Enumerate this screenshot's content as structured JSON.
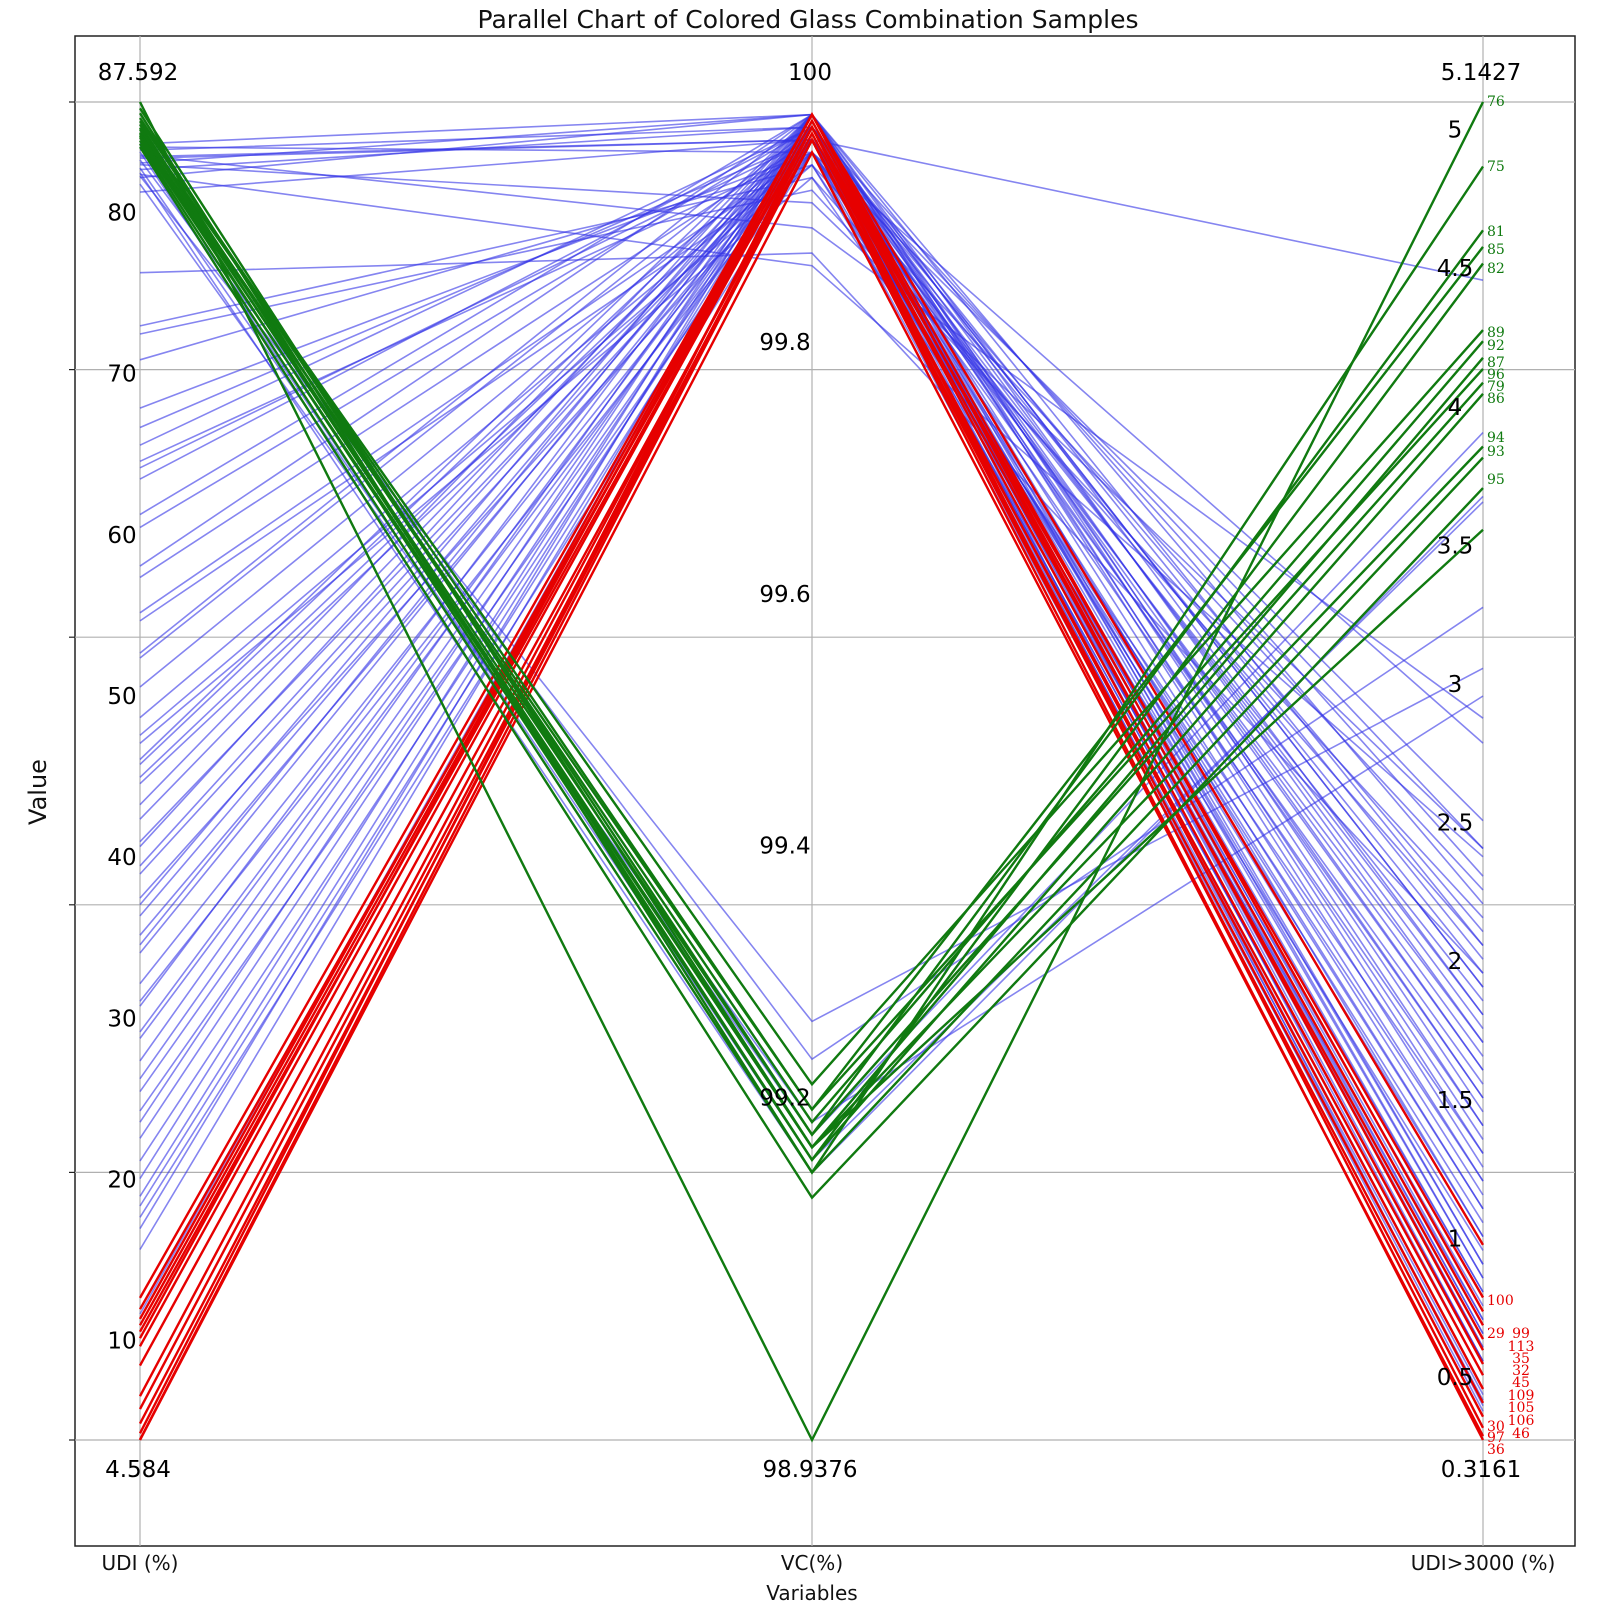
{
  "chart_data": {
    "type": "parallel",
    "title": "Parallel Chart of Colored Glass Combination Samples",
    "xlabel": "Variables",
    "ylabel": "Value",
    "grid": true,
    "axes": [
      {
        "name": "UDI (%)",
        "min": 4.584,
        "max": 87.592,
        "min_label": "4.584",
        "max_label": "87.592",
        "ticks": [
          10,
          20,
          30,
          40,
          50,
          60,
          70,
          80
        ]
      },
      {
        "name": "VC(%)",
        "min": 98.9376,
        "max": 100,
        "min_label": "98.9376",
        "max_label": "100",
        "ticks": [
          99.2,
          99.4,
          99.6,
          99.8
        ]
      },
      {
        "name": "UDI>3000 (%)",
        "min": 0.3161,
        "max": 5.1427,
        "min_label": "0.3161",
        "max_label": "5.1427",
        "ticks": [
          0.5,
          1,
          1.5,
          2,
          2.5,
          3,
          3.5,
          4,
          4.5,
          5
        ]
      }
    ],
    "groups": [
      {
        "name": "green",
        "color": "#107a10"
      },
      {
        "name": "red",
        "color": "#e60000"
      },
      {
        "name": "blue",
        "color": "#3333e6"
      }
    ],
    "series": [
      {
        "group": "green",
        "label": "76",
        "values": [
          87.59,
          98.9376,
          5.1427
        ]
      },
      {
        "group": "green",
        "label": "75",
        "values": [
          86.9,
          99.15,
          4.91
        ]
      },
      {
        "group": "green",
        "label": "81",
        "values": [
          86.6,
          99.18,
          4.68
        ]
      },
      {
        "group": "green",
        "label": "85",
        "values": [
          86.4,
          99.2,
          4.62
        ]
      },
      {
        "group": "green",
        "label": "82",
        "values": [
          86.2,
          99.16,
          4.56
        ]
      },
      {
        "group": "green",
        "label": "89",
        "values": [
          86.0,
          99.22,
          4.32
        ]
      },
      {
        "group": "green",
        "label": "92",
        "values": [
          85.9,
          99.19,
          4.28
        ]
      },
      {
        "group": "green",
        "label": "87",
        "values": [
          85.7,
          99.17,
          4.22
        ]
      },
      {
        "group": "green",
        "label": "96",
        "values": [
          85.6,
          99.2,
          4.18
        ]
      },
      {
        "group": "green",
        "label": "79",
        "values": [
          85.5,
          99.18,
          4.13
        ]
      },
      {
        "group": "green",
        "label": "86",
        "values": [
          85.4,
          99.16,
          4.09
        ]
      },
      {
        "group": "green",
        "label": "94",
        "values": [
          85.2,
          99.17,
          3.9
        ]
      },
      {
        "group": "green",
        "label": "93",
        "values": [
          85.0,
          99.15,
          3.86
        ]
      },
      {
        "group": "green",
        "label": "95",
        "values": [
          84.8,
          99.13,
          3.75
        ]
      },
      {
        "group": "green",
        "label": "",
        "values": [
          87.2,
          99.17,
          3.6
        ]
      },
      {
        "group": "red",
        "label": "100",
        "values": [
          13.4,
          99.99,
          1.02
        ]
      },
      {
        "group": "red",
        "label": "29",
        "values": [
          12.7,
          99.98,
          0.83
        ]
      },
      {
        "group": "red",
        "label": "99",
        "values": [
          12.1,
          99.99,
          0.78
        ]
      },
      {
        "group": "red",
        "label": "113",
        "values": [
          11.7,
          99.985,
          0.73
        ]
      },
      {
        "group": "red",
        "label": "35",
        "values": [
          11.3,
          99.98,
          0.68
        ]
      },
      {
        "group": "red",
        "label": "32",
        "values": [
          10.9,
          99.99,
          0.64
        ]
      },
      {
        "group": "red",
        "label": "45",
        "values": [
          10.4,
          99.98,
          0.59
        ]
      },
      {
        "group": "red",
        "label": "109",
        "values": [
          9.2,
          99.97,
          0.55
        ]
      },
      {
        "group": "red",
        "label": "105",
        "values": [
          7.3,
          99.975,
          0.5
        ]
      },
      {
        "group": "red",
        "label": "106",
        "values": [
          6.5,
          99.97,
          0.45
        ]
      },
      {
        "group": "red",
        "label": "30",
        "values": [
          5.6,
          99.97,
          0.4
        ]
      },
      {
        "group": "red",
        "label": "97",
        "values": [
          5.0,
          99.98,
          0.36
        ]
      },
      {
        "group": "red",
        "label": "46",
        "values": [
          4.584,
          99.96,
          0.33
        ]
      },
      {
        "group": "red",
        "label": "36",
        "values": [
          4.6,
          99.97,
          0.3161
        ]
      },
      {
        "group": "blue",
        "label": "",
        "values": [
          85.0,
          99.99,
          0.9
        ]
      },
      {
        "group": "blue",
        "label": "",
        "values": [
          84.6,
          99.98,
          0.85
        ]
      },
      {
        "group": "blue",
        "label": "",
        "values": [
          84.2,
          99.97,
          0.8
        ]
      },
      {
        "group": "blue",
        "label": "",
        "values": [
          83.8,
          99.99,
          0.75
        ]
      },
      {
        "group": "blue",
        "label": "",
        "values": [
          83.4,
          99.98,
          0.7
        ]
      },
      {
        "group": "blue",
        "label": "",
        "values": [
          82.9,
          99.99,
          0.65
        ]
      },
      {
        "group": "blue",
        "label": "",
        "values": [
          82.0,
          99.97,
          0.6
        ]
      },
      {
        "group": "blue",
        "label": "",
        "values": [
          77.0,
          99.88,
          2.0
        ]
      },
      {
        "group": "blue",
        "label": "",
        "values": [
          73.7,
          99.94,
          2.1
        ]
      },
      {
        "group": "blue",
        "label": "",
        "values": [
          73.2,
          99.93,
          2.2
        ]
      },
      {
        "group": "blue",
        "label": "",
        "values": [
          71.6,
          99.95,
          2.3
        ]
      },
      {
        "group": "blue",
        "label": "",
        "values": [
          68.6,
          99.96,
          1.6
        ]
      },
      {
        "group": "blue",
        "label": "",
        "values": [
          67.4,
          99.97,
          1.7
        ]
      },
      {
        "group": "blue",
        "label": "",
        "values": [
          66.3,
          99.98,
          1.8
        ]
      },
      {
        "group": "blue",
        "label": "",
        "values": [
          65.3,
          99.96,
          1.9
        ]
      },
      {
        "group": "blue",
        "label": "",
        "values": [
          64.9,
          99.97,
          2.0
        ]
      },
      {
        "group": "blue",
        "label": "",
        "values": [
          64.2,
          99.98,
          2.05
        ]
      },
      {
        "group": "blue",
        "label": "",
        "values": [
          62.0,
          99.99,
          1.5
        ]
      },
      {
        "group": "blue",
        "label": "",
        "values": [
          61.2,
          99.98,
          1.4
        ]
      },
      {
        "group": "blue",
        "label": "",
        "values": [
          58.8,
          99.99,
          1.3
        ]
      },
      {
        "group": "blue",
        "label": "",
        "values": [
          58.1,
          99.97,
          1.2
        ]
      },
      {
        "group": "blue",
        "label": "",
        "values": [
          55.9,
          99.96,
          1.1
        ]
      },
      {
        "group": "blue",
        "label": "",
        "values": [
          55.4,
          99.95,
          1.0
        ]
      },
      {
        "group": "blue",
        "label": "",
        "values": [
          53.4,
          99.99,
          0.95
        ]
      },
      {
        "group": "blue",
        "label": "",
        "values": [
          53.1,
          99.98,
          0.9
        ]
      },
      {
        "group": "blue",
        "label": "",
        "values": [
          51.3,
          99.97,
          1.05
        ]
      },
      {
        "group": "blue",
        "label": "",
        "values": [
          49.4,
          99.96,
          1.15
        ]
      },
      {
        "group": "blue",
        "label": "",
        "values": [
          48.3,
          99.95,
          1.25
        ]
      },
      {
        "group": "blue",
        "label": "",
        "values": [
          47.8,
          99.94,
          1.35
        ]
      },
      {
        "group": "blue",
        "label": "",
        "values": [
          46.8,
          99.99,
          1.45
        ]
      },
      {
        "group": "blue",
        "label": "",
        "values": [
          46.5,
          99.98,
          1.55
        ]
      },
      {
        "group": "blue",
        "label": "",
        "values": [
          45.7,
          99.97,
          1.65
        ]
      },
      {
        "group": "blue",
        "label": "",
        "values": [
          45.3,
          99.96,
          1.75
        ]
      },
      {
        "group": "blue",
        "label": "",
        "values": [
          44.0,
          99.99,
          1.85
        ]
      },
      {
        "group": "blue",
        "label": "",
        "values": [
          43.1,
          99.98,
          1.95
        ]
      },
      {
        "group": "blue",
        "label": "",
        "values": [
          41.7,
          99.97,
          2.15
        ]
      },
      {
        "group": "blue",
        "label": "",
        "values": [
          41.4,
          99.99,
          2.25
        ]
      },
      {
        "group": "blue",
        "label": "",
        "values": [
          40.2,
          99.98,
          2.35
        ]
      },
      {
        "group": "blue",
        "label": "",
        "values": [
          39.7,
          99.97,
          2.45
        ]
      },
      {
        "group": "blue",
        "label": "",
        "values": [
          38.2,
          99.96,
          2.55
        ]
      },
      {
        "group": "blue",
        "label": "",
        "values": [
          37.8,
          99.99,
          2.1
        ]
      },
      {
        "group": "blue",
        "label": "",
        "values": [
          37.1,
          99.98,
          1.95
        ]
      },
      {
        "group": "blue",
        "label": "",
        "values": [
          35.9,
          99.97,
          1.85
        ]
      },
      {
        "group": "blue",
        "label": "",
        "values": [
          35.3,
          99.99,
          1.75
        ]
      },
      {
        "group": "blue",
        "label": "",
        "values": [
          34.8,
          99.98,
          1.65
        ]
      },
      {
        "group": "blue",
        "label": "",
        "values": [
          32.9,
          99.97,
          1.55
        ]
      },
      {
        "group": "blue",
        "label": "",
        "values": [
          31.8,
          99.96,
          1.45
        ]
      },
      {
        "group": "blue",
        "label": "",
        "values": [
          31.5,
          99.99,
          1.35
        ]
      },
      {
        "group": "blue",
        "label": "",
        "values": [
          29.9,
          99.98,
          1.25
        ]
      },
      {
        "group": "blue",
        "label": "",
        "values": [
          29.5,
          99.97,
          1.15
        ]
      },
      {
        "group": "blue",
        "label": "",
        "values": [
          28.1,
          99.99,
          1.05
        ]
      },
      {
        "group": "blue",
        "label": "",
        "values": [
          27.0,
          99.98,
          0.95
        ]
      },
      {
        "group": "blue",
        "label": "",
        "values": [
          26.2,
          99.97,
          0.85
        ]
      },
      {
        "group": "blue",
        "label": "",
        "values": [
          25.0,
          99.96,
          0.75
        ]
      },
      {
        "group": "blue",
        "label": "",
        "values": [
          24.3,
          99.99,
          0.7
        ]
      },
      {
        "group": "blue",
        "label": "",
        "values": [
          23.3,
          99.98,
          0.65
        ]
      },
      {
        "group": "blue",
        "label": "",
        "values": [
          21.9,
          99.97,
          0.6
        ]
      },
      {
        "group": "blue",
        "label": "",
        "values": [
          20.8,
          99.99,
          0.55
        ]
      },
      {
        "group": "blue",
        "label": "",
        "values": [
          19.7,
          99.98,
          0.5
        ]
      },
      {
        "group": "blue",
        "label": "",
        "values": [
          19.1,
          99.97,
          0.48
        ]
      },
      {
        "group": "blue",
        "label": "",
        "values": [
          18.4,
          99.96,
          0.46
        ]
      },
      {
        "group": "blue",
        "label": "",
        "values": [
          17.7,
          99.99,
          0.44
        ]
      },
      {
        "group": "blue",
        "label": "",
        "values": [
          16.4,
          99.98,
          0.42
        ]
      },
      {
        "group": "blue",
        "label": "",
        "values": [
          12.4,
          99.99,
          0.6
        ]
      },
      {
        "group": "blue",
        "label": "",
        "values": [
          84.0,
          99.24,
          3.32
        ]
      },
      {
        "group": "blue",
        "label": "",
        "values": [
          83.0,
          99.27,
          3.1
        ]
      },
      {
        "group": "blue",
        "label": "",
        "values": [
          82.5,
          99.19,
          3.0
        ]
      },
      {
        "group": "blue",
        "label": "",
        "values": [
          83.5,
          99.18,
          3.95
        ]
      },
      {
        "group": "blue",
        "label": "",
        "values": [
          84.5,
          99.16,
          3.7
        ]
      },
      {
        "group": "blue",
        "label": "",
        "values": [
          83.2,
          99.15,
          3.72
        ]
      },
      {
        "group": "blue",
        "label": "",
        "values": [
          84.8,
          99.96,
          2.83
        ]
      },
      {
        "group": "blue",
        "label": "",
        "values": [
          84.3,
          99.9,
          2.92
        ]
      },
      {
        "group": "blue",
        "label": "",
        "values": [
          84.1,
          99.97,
          4.5
        ]
      },
      {
        "group": "blue",
        "label": "",
        "values": [
          83.7,
          99.92,
          2.45
        ]
      },
      {
        "group": "blue",
        "label": "",
        "values": [
          83.1,
          99.87,
          2.42
        ]
      }
    ],
    "axis_labels_on_right": {
      "green": [
        "76",
        "75",
        "81",
        "85",
        "82",
        "89",
        "92",
        "87",
        "96",
        "79",
        "86",
        "94",
        "93",
        "95"
      ],
      "red": [
        "100",
        "29",
        "99",
        "113",
        "35",
        "32",
        "45",
        "109",
        "105",
        "106",
        "30",
        "97",
        "46",
        "36"
      ]
    }
  }
}
